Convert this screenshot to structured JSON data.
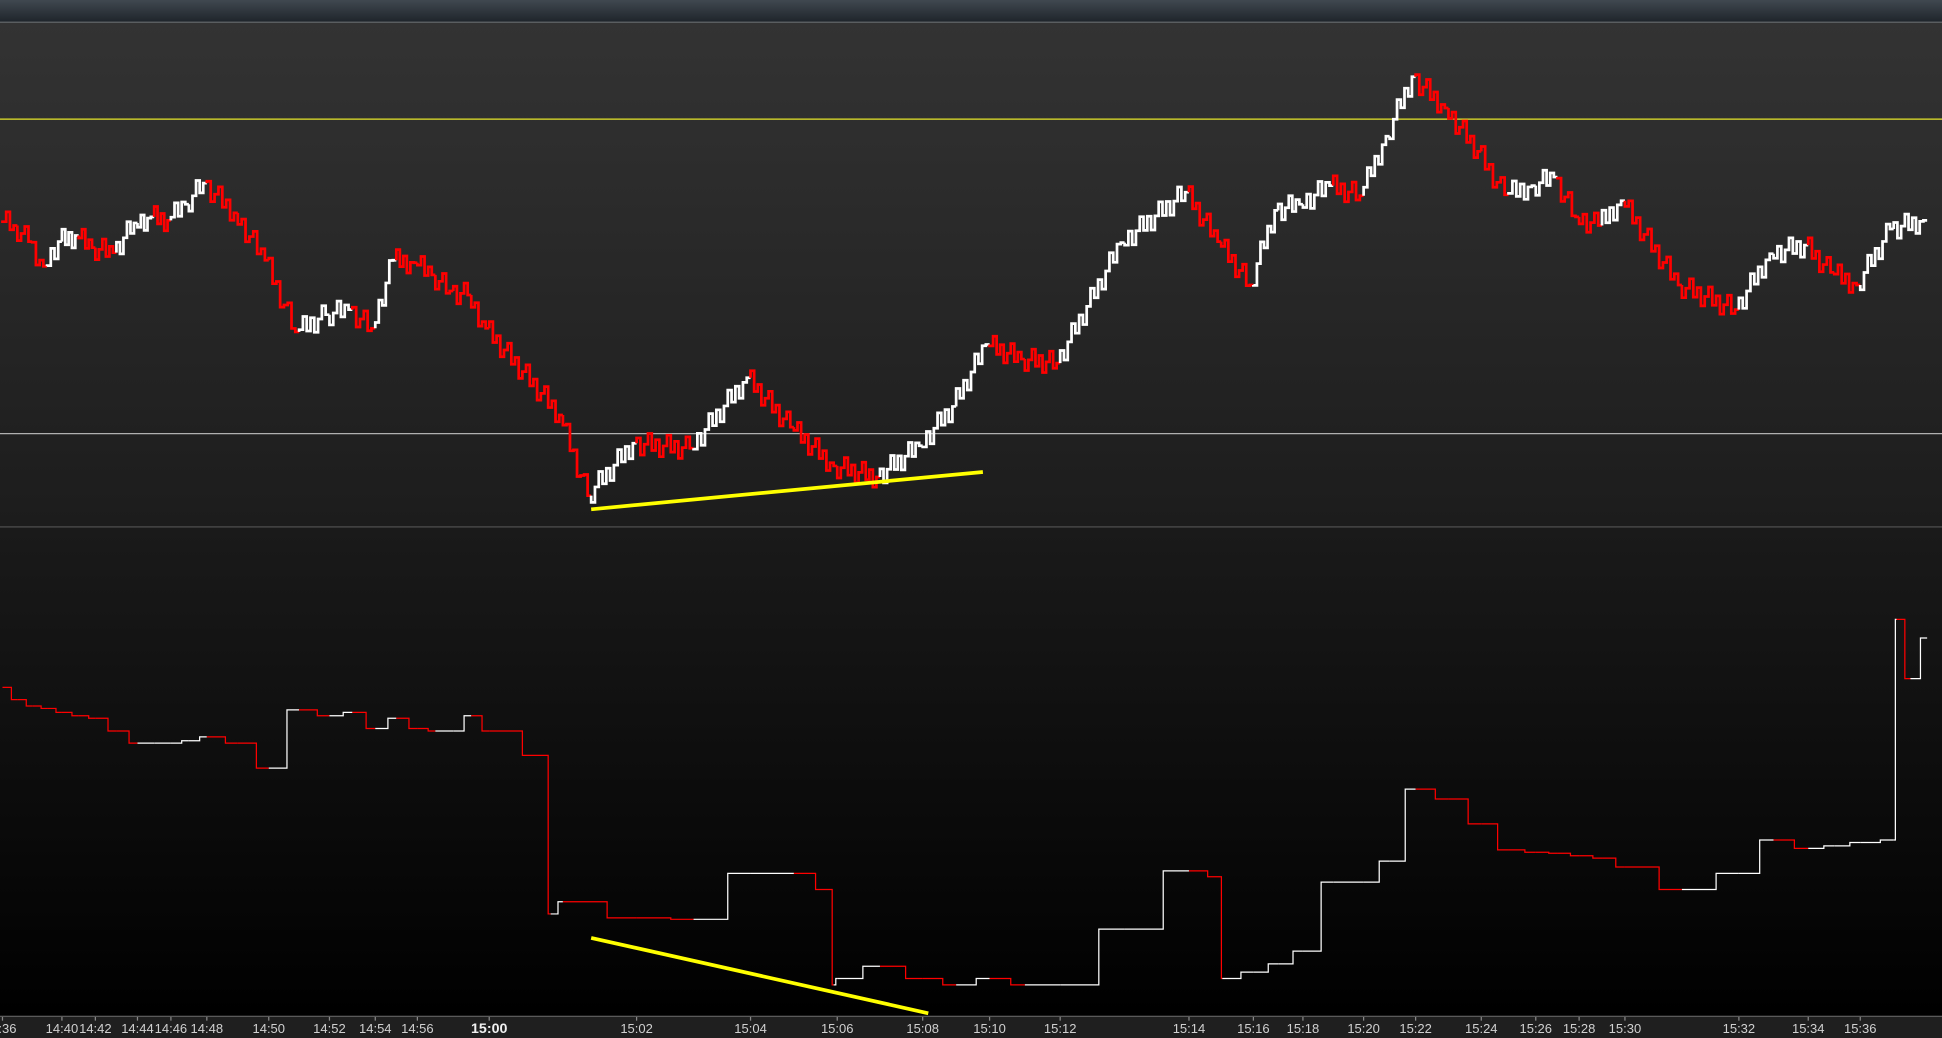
{
  "colors": {
    "up": "#ffffff",
    "down": "#ff0000",
    "horizontal_level_upper": "#e6e62a",
    "horizontal_level_lower": "#b0b0b0",
    "trendline": "#ffff00",
    "axis_text": "#d0d0d0"
  },
  "chart_data": [
    {
      "type": "line",
      "panel": "upper",
      "style": "tick bars, white up / red down",
      "x": [
        "14:36",
        "14:37",
        "14:38",
        "14:39",
        "14:40",
        "14:41",
        "14:42",
        "14:43",
        "14:44",
        "14:45",
        "14:46",
        "14:47",
        "14:48",
        "14:49",
        "14:50",
        "14:51",
        "14:52",
        "14:53",
        "14:54",
        "14:55",
        "14:56",
        "14:57",
        "14:58",
        "14:59",
        "15:00",
        "15:01",
        "15:01:23",
        "15:02",
        "15:03",
        "15:04",
        "15:05",
        "15:06",
        "15:07",
        "15:08",
        "15:09",
        "15:10",
        "15:11",
        "15:12",
        "15:13",
        "15:14",
        "15:15",
        "15:16",
        "15:17",
        "15:18",
        "15:19",
        "15:20",
        "15:21",
        "15:22",
        "15:23",
        "15:24",
        "15:25",
        "15:26",
        "15:27",
        "15:28",
        "15:29",
        "15:30",
        "15:31",
        "15:32",
        "15:33",
        "15:34",
        "15:35",
        "15:36",
        "15:37",
        "15:38"
      ],
      "values": [
        60.7,
        59.7,
        56.5,
        51.6,
        56.5,
        57.7,
        55.3,
        54.3,
        60.2,
        61.4,
        60.7,
        63.9,
        68.1,
        62.2,
        52.8,
        38.6,
        42.0,
        43.0,
        39.3,
        52.8,
        52.3,
        49.9,
        46.7,
        45.9,
        39.3,
        22.1,
        6.1,
        16.5,
        15.5,
        29.5,
        19.7,
        12.0,
        9.8,
        16.0,
        23.8,
        36.1,
        33.2,
        32.4,
        56.3,
        66.3,
        56.5,
        47.9,
        62.7,
        63.9,
        67.6,
        65.6,
        77.4,
        89.2,
        83.0,
        74.4,
        65.8,
        67.6,
        69.3,
        61.4,
        59.7,
        64.6,
        47.9,
        43.0,
        54.1,
        55.8,
        50.4,
        47.9,
        59.0,
        60.7
      ],
      "horizontal_lines": [
        {
          "level": 80.8,
          "color": "#e6e62a"
        },
        {
          "level": 18.4,
          "color": "#b0b0b0"
        }
      ],
      "trendline": {
        "from": [
          "15:01:23",
          3.4
        ],
        "to": [
          "15:09:48",
          10.8
        ],
        "color": "#ffff00"
      }
    },
    {
      "type": "line",
      "panel": "lower",
      "style": "step line, white up / red down",
      "x": [
        "14:36",
        "14:37",
        "14:38",
        "14:39",
        "14:40",
        "14:41",
        "14:42",
        "14:43",
        "14:44",
        "14:45",
        "14:46",
        "14:47",
        "14:48",
        "14:49",
        "14:50",
        "14:51",
        "14:52",
        "14:53",
        "14:54",
        "14:55",
        "14:56",
        "14:57",
        "14:58",
        "14:59",
        "15:00",
        "15:00:45",
        "15:00:50",
        "15:01",
        "15:02",
        "15:03",
        "15:04",
        "15:05",
        "15:05:50",
        "15:05:55",
        "15:06",
        "15:07",
        "15:08",
        "15:09",
        "15:10",
        "15:11",
        "15:12",
        "15:13",
        "15:14",
        "15:14:58",
        "15:15:02",
        "15:16",
        "15:17",
        "15:18",
        "15:19",
        "15:20",
        "15:21",
        "15:22",
        "15:23",
        "15:24",
        "15:25",
        "15:26",
        "15:27",
        "15:28",
        "15:29",
        "15:30",
        "15:31",
        "15:32",
        "15:33",
        "15:34",
        "15:35",
        "15:36",
        "15:37",
        "15:37:05",
        "15:37:30",
        "15:38"
      ],
      "values": [
        67.1,
        64.6,
        63.3,
        62.8,
        62.0,
        61.3,
        60.8,
        58.2,
        55.7,
        55.7,
        55.7,
        56.2,
        57.0,
        55.7,
        50.6,
        62.5,
        61.3,
        62.0,
        58.7,
        60.8,
        58.7,
        58.2,
        58.2,
        61.3,
        58.2,
        53.2,
        20.8,
        23.3,
        20.0,
        19.7,
        29.1,
        29.1,
        25.8,
        6.3,
        7.6,
        10.1,
        7.6,
        6.3,
        7.6,
        6.3,
        6.3,
        17.7,
        29.6,
        28.4,
        7.6,
        8.9,
        10.6,
        13.2,
        27.3,
        27.3,
        31.6,
        46.3,
        44.3,
        39.2,
        33.9,
        33.4,
        33.2,
        32.7,
        32.2,
        30.4,
        25.8,
        29.1,
        35.9,
        34.2,
        34.7,
        35.4,
        35.9,
        81.0,
        68.9,
        77.2
      ],
      "trendline": {
        "from": [
          "15:01:23",
          15.9
        ],
        "to": [
          "15:08:10",
          0.5
        ],
        "color": "#ffff00"
      }
    }
  ],
  "x_axis": {
    "ticks": [
      {
        "label": ":36"
      },
      {
        "label": "14:40"
      },
      {
        "label": "14:42"
      },
      {
        "label": "14:44"
      },
      {
        "label": "14:46"
      },
      {
        "label": "14:48"
      },
      {
        "label": "14:50"
      },
      {
        "label": "14:52"
      },
      {
        "label": "14:54"
      },
      {
        "label": "14:56"
      },
      {
        "label": "15:00",
        "major": true
      },
      {
        "label": "15:02"
      },
      {
        "label": "15:04"
      },
      {
        "label": "15:06"
      },
      {
        "label": "15:08"
      },
      {
        "label": "15:10"
      },
      {
        "label": "15:12"
      },
      {
        "label": "15:14"
      },
      {
        "label": "15:16"
      },
      {
        "label": "15:18"
      },
      {
        "label": "15:20"
      },
      {
        "label": "15:22"
      },
      {
        "label": "15:24"
      },
      {
        "label": "15:26"
      },
      {
        "label": "15:28"
      },
      {
        "label": "15:30"
      },
      {
        "label": "15:32"
      },
      {
        "label": "15:34"
      },
      {
        "label": "15:36"
      }
    ]
  }
}
